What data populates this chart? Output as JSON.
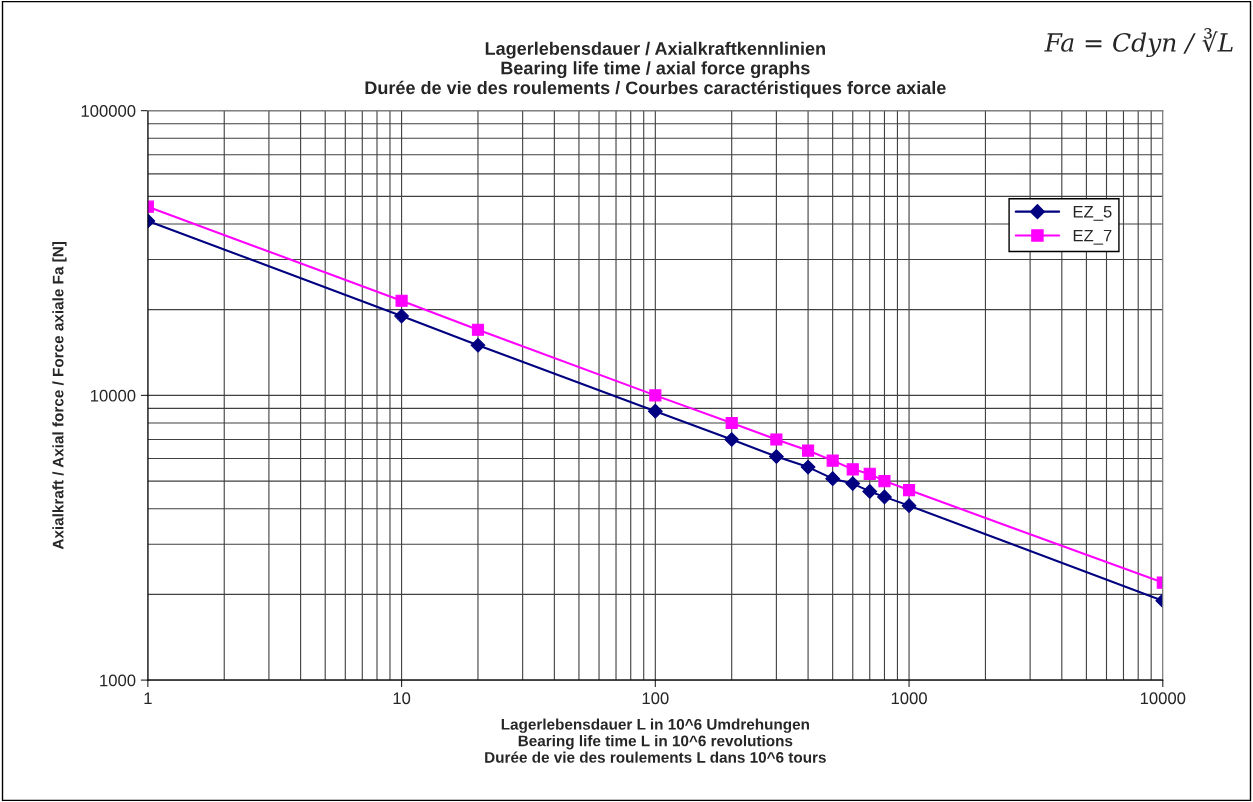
{
  "chart_data": {
    "type": "line",
    "title": "Lagerlebensdauer / Axialkraftkennlinien\nBearing life time / axial force graphs\nDurée de vie des roulements / Courbes caractéristiques force axiale",
    "xlabel": "Lagerlebensdauer L in 10^6 Umdrehungen\nBearing life time L in 10^6 revolutions\nDurée de vie des roulements L dans 10^6 tours",
    "ylabel": "Axialkraft / Axial force / Force axiale Fa [N]",
    "annotations": [
      "Fa = Cdyn / ∛L"
    ],
    "x": [
      1,
      10,
      20,
      100,
      200,
      300,
      400,
      500,
      600,
      700,
      800,
      1000,
      10000
    ],
    "series": [
      {
        "name": "EZ_5",
        "color": "#000080",
        "marker": "diamond",
        "values": [
          41000,
          19000,
          15000,
          8800,
          7000,
          6100,
          5600,
          5100,
          4900,
          4600,
          4400,
          4100,
          1900
        ]
      },
      {
        "name": "EZ_7",
        "color": "#ff00ff",
        "marker": "square",
        "values": [
          46000,
          21500,
          17000,
          10000,
          8000,
          7000,
          6400,
          5900,
          5500,
          5300,
          5000,
          4650,
          2200
        ]
      }
    ],
    "log": "xy",
    "xlim": [
      1,
      10000
    ],
    "xticks": [
      1,
      10,
      100,
      1000,
      10000
    ],
    "ylim": [
      1000,
      100000
    ],
    "yticks": [
      1000,
      10000,
      100000
    ],
    "grid": true,
    "legend": "top right",
    "line_style": "solid"
  }
}
